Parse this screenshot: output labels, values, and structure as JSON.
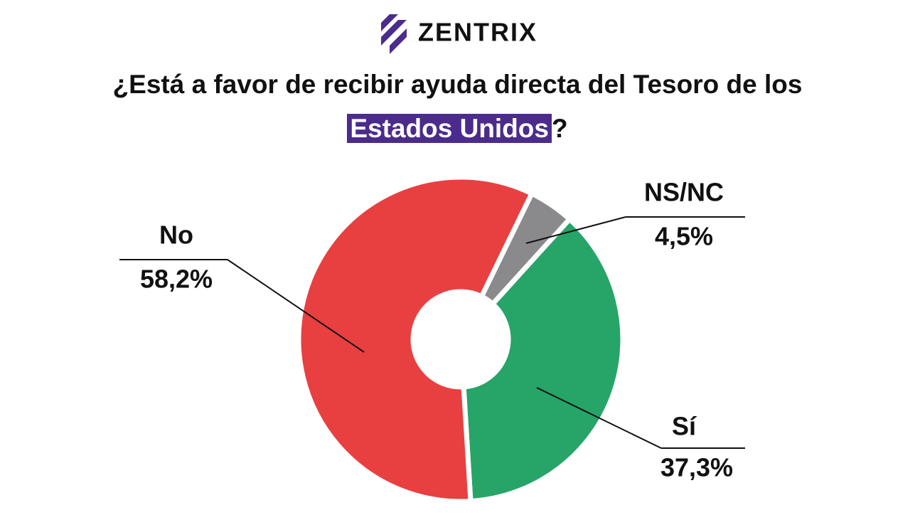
{
  "brand": "ZENTRIX",
  "chart_data": {
    "type": "donut",
    "title_parts": [
      "¿Está a favor de recibir ayuda directa del Tesoro de los",
      "Estados Unidos",
      "?"
    ],
    "categories": [
      "NS/NC",
      "Sí",
      "No"
    ],
    "values": [
      4.5,
      37.3,
      58.2
    ],
    "value_labels": [
      "4,5%",
      "37,3%",
      "58,2%"
    ],
    "colors": [
      "#8a8a8d",
      "#27a468",
      "#e84040"
    ]
  }
}
